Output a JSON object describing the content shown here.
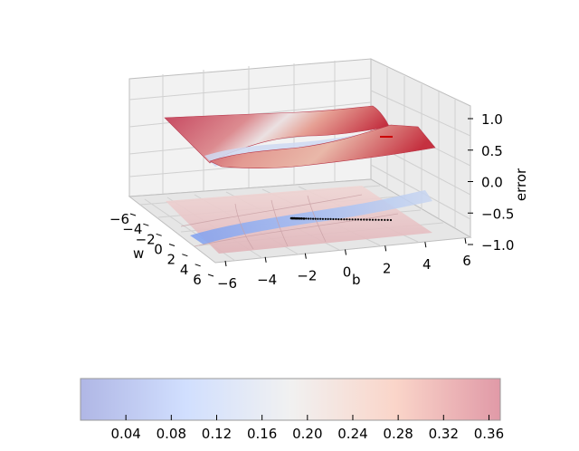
{
  "chart_data": {
    "type": "surface",
    "title": "",
    "axes": {
      "w": {
        "label": "w",
        "ticks": [
          "−6",
          "−4",
          "−2",
          "0",
          "2",
          "4",
          "6"
        ],
        "range": [
          -6,
          6
        ]
      },
      "b": {
        "label": "b",
        "ticks": [
          "−6",
          "−4",
          "−2",
          "0",
          "2",
          "4",
          "6"
        ],
        "range": [
          -6,
          6
        ]
      },
      "error": {
        "label": "error",
        "ticks": [
          "−1.0",
          "−0.5",
          "0.0",
          "0.5",
          "1.0"
        ],
        "range": [
          -1,
          1
        ]
      }
    },
    "colorbar": {
      "ticks": [
        "0.04",
        "0.08",
        "0.12",
        "0.16",
        "0.20",
        "0.24",
        "0.28",
        "0.32",
        "0.36"
      ],
      "range": [
        0.0,
        0.37
      ],
      "colormap": "coolwarm"
    },
    "descent_path_color": "#000000",
    "path_end_marker_color": "#cc0000"
  }
}
